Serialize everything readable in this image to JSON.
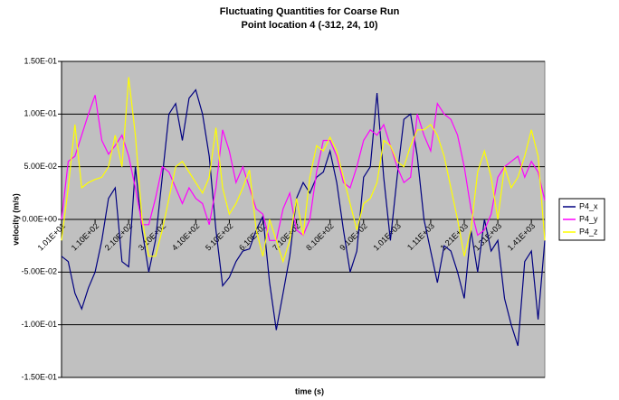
{
  "chart_data": {
    "type": "line",
    "title": "Fluctuating Quantities for Coarse Run",
    "subtitle": "Point location 4 (-312, 24, 10)",
    "xlabel": "time (s)",
    "ylabel": "velocity (m/s)",
    "x": [
      10,
      30,
      50,
      70,
      90,
      110,
      130,
      150,
      170,
      190,
      210,
      230,
      250,
      270,
      290,
      310,
      330,
      350,
      370,
      390,
      410,
      430,
      450,
      470,
      490,
      510,
      530,
      550,
      570,
      590,
      610,
      630,
      650,
      670,
      690,
      710,
      730,
      750,
      770,
      790,
      810,
      830,
      850,
      870,
      890,
      910,
      930,
      950,
      970,
      990,
      1010,
      1030,
      1050,
      1070,
      1090,
      1110,
      1130,
      1150,
      1170,
      1190,
      1210,
      1230,
      1250,
      1270,
      1290,
      1310,
      1330,
      1350,
      1370,
      1390,
      1410,
      1430,
      1450
    ],
    "series": [
      {
        "name": "P4_x",
        "color": "#000080",
        "values": [
          -0.035,
          -0.04,
          -0.07,
          -0.085,
          -0.065,
          -0.05,
          -0.02,
          0.02,
          0.03,
          -0.04,
          -0.045,
          0.05,
          -0.01,
          -0.05,
          -0.02,
          0.04,
          0.1,
          0.11,
          0.075,
          0.115,
          0.123,
          0.1,
          0.06,
          -0.01,
          -0.063,
          -0.055,
          -0.04,
          -0.03,
          -0.028,
          -0.01,
          0.003,
          -0.06,
          -0.105,
          -0.07,
          -0.035,
          0.02,
          0.035,
          0.025,
          0.04,
          0.045,
          0.065,
          0.035,
          -0.01,
          -0.05,
          -0.03,
          0.04,
          0.05,
          0.12,
          0.04,
          -0.02,
          0.04,
          0.095,
          0.1,
          0.06,
          0.0,
          -0.03,
          -0.06,
          -0.025,
          -0.03,
          -0.05,
          -0.075,
          -0.01,
          -0.05,
          0.0,
          -0.03,
          -0.02,
          -0.075,
          -0.1,
          -0.12,
          -0.04,
          -0.03,
          -0.095,
          -0.02
        ]
      },
      {
        "name": "P4_y",
        "color": "#ff00ff",
        "values": [
          0.0,
          0.055,
          0.06,
          0.08,
          0.1,
          0.118,
          0.075,
          0.062,
          0.07,
          0.08,
          0.06,
          0.03,
          -0.005,
          -0.005,
          0.02,
          0.05,
          0.045,
          0.03,
          0.015,
          0.03,
          0.02,
          0.015,
          -0.005,
          0.03,
          0.085,
          0.065,
          0.035,
          0.05,
          0.03,
          0.01,
          0.005,
          -0.02,
          -0.02,
          0.01,
          0.025,
          -0.01,
          -0.015,
          0.0,
          0.045,
          0.075,
          0.075,
          0.06,
          0.035,
          0.03,
          0.05,
          0.075,
          0.085,
          0.08,
          0.09,
          0.07,
          0.05,
          0.035,
          0.04,
          0.1,
          0.08,
          0.065,
          0.11,
          0.1,
          0.095,
          0.08,
          0.05,
          0.01,
          -0.015,
          -0.01,
          0.005,
          0.04,
          0.05,
          0.055,
          0.06,
          0.04,
          0.055,
          0.045,
          0.018
        ]
      },
      {
        "name": "P4_z",
        "color": "#ffff00",
        "values": [
          -0.02,
          0.03,
          0.09,
          0.03,
          0.035,
          0.038,
          0.04,
          0.05,
          0.08,
          0.05,
          0.135,
          0.08,
          0.0,
          -0.035,
          -0.035,
          -0.01,
          0.02,
          0.05,
          0.055,
          0.045,
          0.035,
          0.025,
          0.04,
          0.087,
          0.03,
          0.005,
          0.015,
          0.03,
          0.047,
          -0.01,
          -0.035,
          0.0,
          -0.02,
          -0.04,
          -0.02,
          0.02,
          -0.015,
          0.04,
          0.07,
          0.065,
          0.078,
          0.065,
          0.04,
          0.015,
          -0.01,
          0.015,
          0.02,
          0.035,
          0.075,
          0.07,
          0.055,
          0.05,
          0.07,
          0.085,
          0.085,
          0.09,
          0.08,
          0.06,
          0.03,
          0.0,
          -0.035,
          -0.01,
          0.045,
          0.065,
          0.04,
          0.0,
          0.05,
          0.03,
          0.04,
          0.06,
          0.085,
          0.06,
          -0.02
        ]
      }
    ],
    "xlim": [
      10,
      1450
    ],
    "xticks": [
      {
        "value": 10.1,
        "label": "1.01E+01"
      },
      {
        "value": 110,
        "label": "1.10E+02"
      },
      {
        "value": 210,
        "label": "2.10E+02"
      },
      {
        "value": 310,
        "label": "3.10E+02"
      },
      {
        "value": 410,
        "label": "4.10E+02"
      },
      {
        "value": 510,
        "label": "5.10E+02"
      },
      {
        "value": 610,
        "label": "6.10E+02"
      },
      {
        "value": 710,
        "label": "7.10E+02"
      },
      {
        "value": 810,
        "label": "8.10E+02"
      },
      {
        "value": 910,
        "label": "9.10E+02"
      },
      {
        "value": 1010,
        "label": "1.01E+03"
      },
      {
        "value": 1110,
        "label": "1.11E+03"
      },
      {
        "value": 1210,
        "label": "1.21E+03"
      },
      {
        "value": 1310,
        "label": "1.31E+03"
      },
      {
        "value": 1410,
        "label": "1.41E+03"
      }
    ],
    "ylim": [
      -0.15,
      0.15
    ],
    "yticks": [
      {
        "value": 0.15,
        "label": "1.50E-01"
      },
      {
        "value": 0.1,
        "label": "1.00E-01"
      },
      {
        "value": 0.05,
        "label": "5.00E-02"
      },
      {
        "value": 0,
        "label": "0.00E+00"
      },
      {
        "value": -0.05,
        "label": "-5.00E-02"
      },
      {
        "value": -0.1,
        "label": "-1.00E-01"
      },
      {
        "value": -0.15,
        "label": "-1.50E-01"
      }
    ],
    "grid": true,
    "legend": "right"
  }
}
